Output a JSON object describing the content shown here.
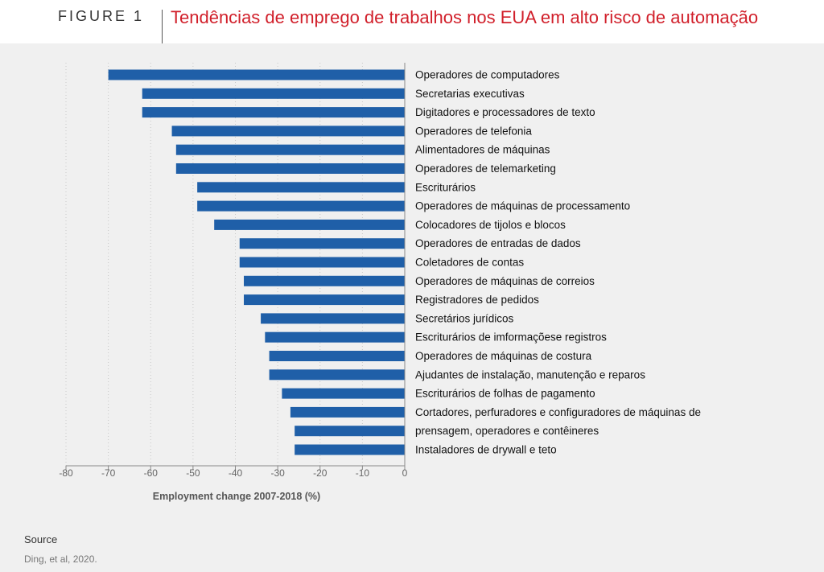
{
  "figure": {
    "label": "FIGURE 1",
    "title": "Tendências de emprego de trabalhos nos EUA em alto risco de automação"
  },
  "source": {
    "label": "Source",
    "text": "Ding, et al, 2020."
  },
  "colors": {
    "bar": "#1f5fa8",
    "title": "#d11f2a",
    "grid": "#c8c8c8"
  },
  "chart_data": {
    "type": "bar",
    "orientation": "horizontal",
    "xlabel": "Employment change 2007-2018 (%)",
    "xlim": [
      -80,
      0
    ],
    "xticks": [
      -80,
      -70,
      -60,
      -50,
      -40,
      -30,
      -20,
      -10,
      0
    ],
    "grid": "vertical dotted",
    "categories": [
      "Operadores de computadores",
      "Secretarias executivas",
      "Digitadores e processadores de texto",
      "Operadores de telefonia",
      "Alimentadores de máquinas",
      "Operadores de telemarketing",
      "Escriturários",
      "Operadores de máquinas de processamento",
      "Colocadores de tijolos e blocos",
      "Operadores de entradas de dados",
      "Coletadores de contas",
      "Operadores de máquinas de correios",
      "Registradores de pedidos",
      "Secretários jurídicos",
      "Escriturários de imformaçõese registros",
      "Operadores de máquinas de costura",
      "Ajudantes de instalação, manutenção e reparos",
      "Escriturários de folhas de pagamento",
      "Cortadores, perfuradores e configuradores de máquinas de",
      "prensagem, operadores e contêineres",
      "Instaladores de drywall e teto"
    ],
    "values": [
      -70,
      -62,
      -62,
      -55,
      -54,
      -54,
      -49,
      -49,
      -45,
      -39,
      -39,
      -38,
      -38,
      -34,
      -33,
      -32,
      -32,
      -29,
      -27,
      -26,
      -26
    ]
  }
}
